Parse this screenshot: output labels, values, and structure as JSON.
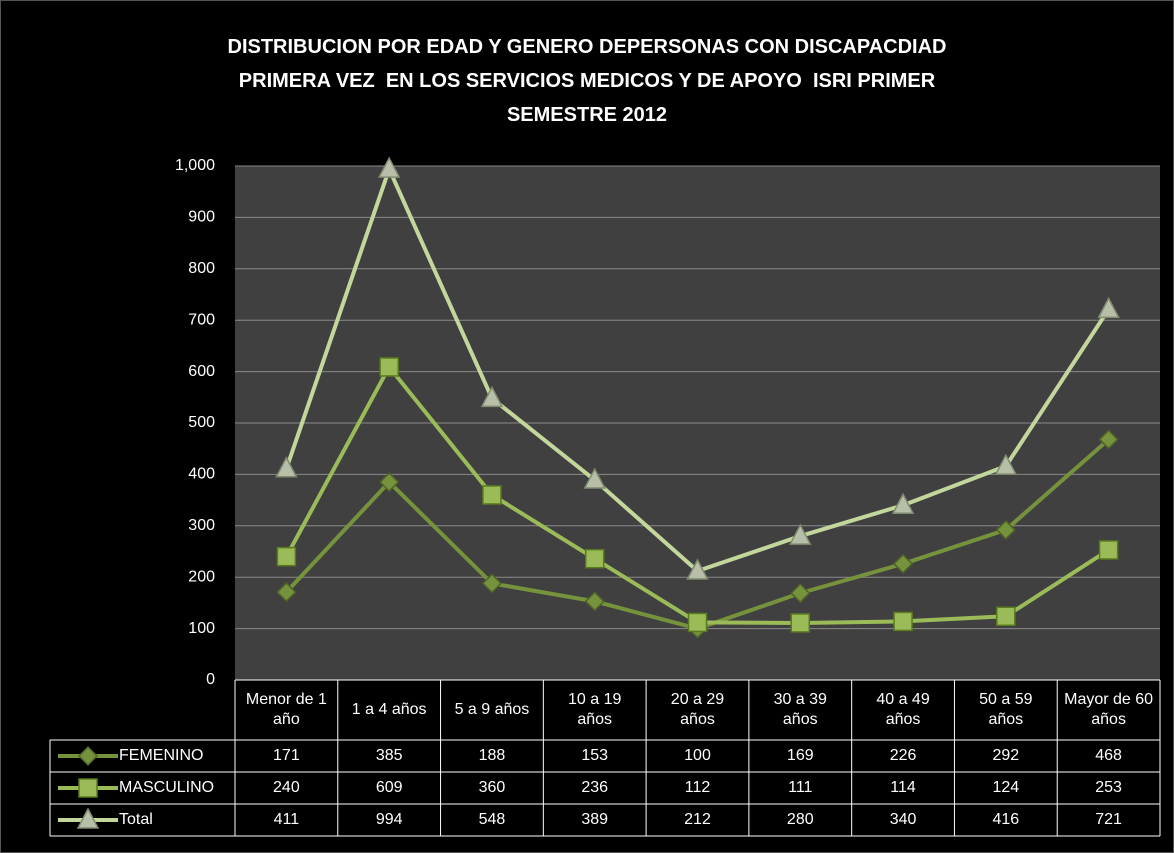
{
  "chart_data": {
    "type": "line",
    "title": [
      "DISTRIBUCION POR EDAD Y GENERO DEPERSONAS CON DISCAPACDIAD",
      "PRIMERA VEZ  EN LOS SERVICIOS MEDICOS Y DE APOYO  ISRI PRIMER",
      "SEMESTRE 2012"
    ],
    "categories": [
      "Menor de 1 año",
      "1 a 4 años",
      "5 a 9 años",
      "10 a 19 años",
      "20 a 29 años",
      "30 a 39 años",
      "40 a 49 años",
      "50 a 59 años",
      "Mayor de 60 años"
    ],
    "series": [
      {
        "name": "FEMENINO",
        "color": "#76923c",
        "marker": "diamond",
        "values": [
          171,
          385,
          188,
          153,
          100,
          169,
          226,
          292,
          468
        ]
      },
      {
        "name": "MASCULINO",
        "color": "#9bbb59",
        "marker": "square",
        "values": [
          240,
          609,
          360,
          236,
          112,
          111,
          114,
          124,
          253
        ]
      },
      {
        "name": "Total",
        "color": "#c3d69b",
        "marker": "triangle",
        "values": [
          411,
          994,
          548,
          389,
          212,
          280,
          340,
          416,
          721
        ]
      }
    ],
    "ylim": [
      0,
      1000
    ],
    "yticks": [
      0,
      100,
      200,
      300,
      400,
      500,
      600,
      700,
      800,
      900,
      {
        "value": 1000,
        "label": "1,000"
      }
    ],
    "grid": true,
    "data_table": true
  }
}
